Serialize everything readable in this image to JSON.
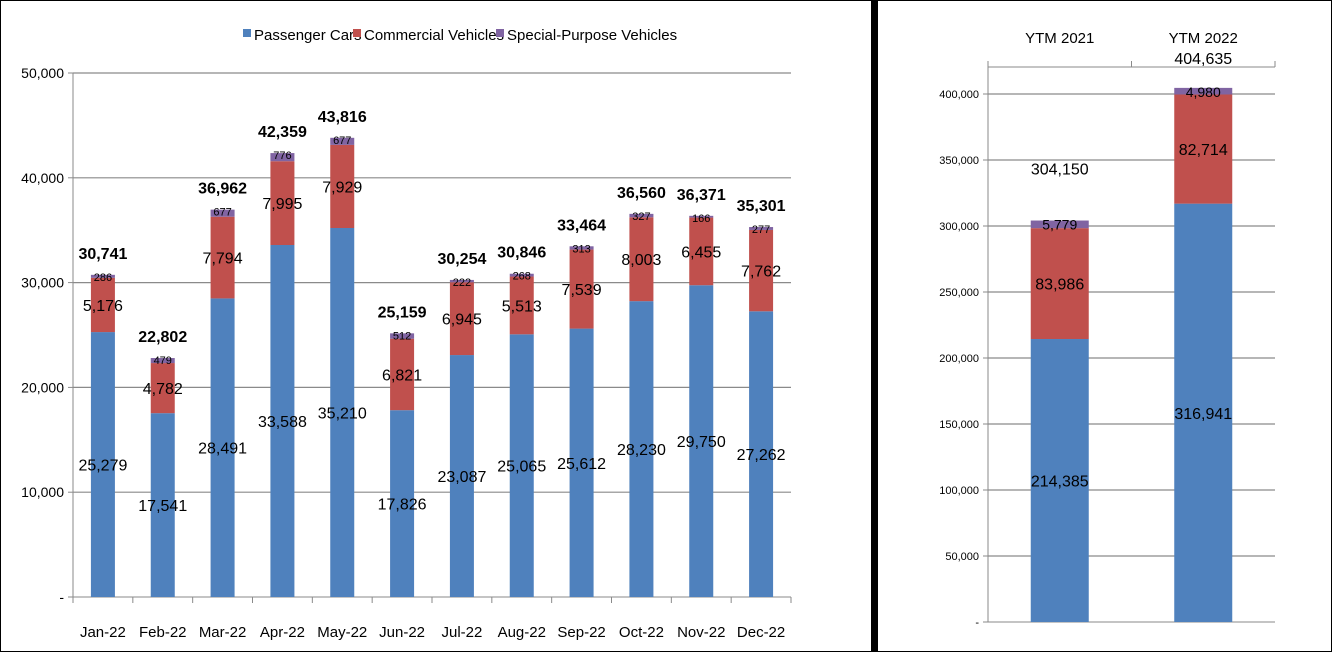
{
  "chart_data": [
    {
      "type": "bar",
      "stacked": true,
      "categories": [
        "Jan-22",
        "Feb-22",
        "Mar-22",
        "Apr-22",
        "May-22",
        "Jun-22",
        "Jul-22",
        "Aug-22",
        "Sep-22",
        "Oct-22",
        "Nov-22",
        "Dec-22"
      ],
      "series": [
        {
          "name": "Passenger Cars",
          "color": "#4F81BD",
          "values": [
            25279,
            17541,
            28491,
            33588,
            35210,
            17826,
            23087,
            25065,
            25612,
            28230,
            29750,
            27262
          ]
        },
        {
          "name": "Commercial Vehicles",
          "color": "#C0504D",
          "values": [
            5176,
            4782,
            7794,
            7995,
            7929,
            6821,
            6945,
            5513,
            7539,
            8003,
            6455,
            7762
          ]
        },
        {
          "name": "Special-Purpose Vehicles",
          "color": "#8064A2",
          "values": [
            286,
            479,
            677,
            776,
            677,
            512,
            222,
            268,
            313,
            327,
            166,
            277
          ]
        }
      ],
      "totals": [
        30741,
        22802,
        36962,
        42359,
        43816,
        25159,
        30254,
        30846,
        33464,
        36560,
        36371,
        35301
      ],
      "value_labels": {
        "Passenger Cars": [
          "25,279",
          "17,541",
          "28,491",
          "33,588",
          "35,210",
          "17,826",
          "23,087",
          "25,065",
          "25,612",
          "28,230",
          "29,750",
          "27,262"
        ],
        "Commercial Vehicles": [
          "5,176",
          "4,782",
          "7,794",
          "7,995",
          "7,929",
          "6,821",
          "6,945",
          "5,513",
          "7,539",
          "8,003",
          "6,455",
          "7,762"
        ],
        "Special-Purpose Vehicles": [
          "286",
          "479",
          "677",
          "776",
          "677",
          "512",
          "222",
          "268",
          "313",
          "327",
          "166",
          "277"
        ]
      },
      "total_labels": [
        "30,741",
        "22,802",
        "36,962",
        "42,359",
        "43,816",
        "25,159",
        "30,254",
        "30,846",
        "33,464",
        "36,560",
        "36,371",
        "35,301"
      ],
      "yticks": [
        0,
        10000,
        20000,
        30000,
        40000,
        50000
      ],
      "ytick_labels": [
        "-",
        "10,000",
        "20,000",
        "30,000",
        "40,000",
        "50,000"
      ],
      "ylim": [
        0,
        50000
      ],
      "grid": true,
      "legend": "top-center",
      "xlabel": "",
      "ylabel": "",
      "title": ""
    },
    {
      "type": "bar",
      "stacked": true,
      "categories": [
        "YTM 2021",
        "YTM 2022"
      ],
      "category_position": "top",
      "series": [
        {
          "name": "Passenger Cars",
          "color": "#4F81BD",
          "values": [
            214385,
            316941
          ]
        },
        {
          "name": "Commercial Vehicles",
          "color": "#C0504D",
          "values": [
            83986,
            82714
          ]
        },
        {
          "name": "Special-Purpose Vehicles",
          "color": "#8064A2",
          "values": [
            5779,
            4980
          ]
        }
      ],
      "totals": [
        304150,
        404635
      ],
      "value_labels": {
        "Passenger Cars": [
          "214,385",
          "316,941"
        ],
        "Commercial Vehicles": [
          "83,986",
          "82,714"
        ],
        "Special-Purpose Vehicles": [
          "5,779",
          "4,980"
        ]
      },
      "total_labels": [
        "304,150",
        "404,635"
      ],
      "yticks": [
        0,
        50000,
        100000,
        150000,
        200000,
        250000,
        300000,
        350000,
        400000
      ],
      "ytick_labels": [
        "-",
        "50,000",
        "100,000",
        "150,000",
        "200,000",
        "250,000",
        "300,000",
        "350,000",
        "400,000"
      ],
      "ylim": [
        0,
        420000
      ],
      "grid": true,
      "xlabel": "",
      "ylabel": "",
      "title": ""
    }
  ]
}
